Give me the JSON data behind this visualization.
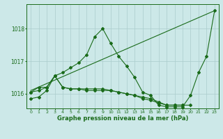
{
  "background_color": "#cce8e8",
  "plot_bg_color": "#cce8e8",
  "grid_color": "#aacccc",
  "line_color": "#1a6b1a",
  "title": "Graphe pression niveau de la mer (hPa)",
  "ylim": [
    1015.55,
    1018.75
  ],
  "yticks": [
    1016,
    1017,
    1018
  ],
  "xticks": [
    0,
    1,
    2,
    3,
    4,
    5,
    6,
    7,
    8,
    9,
    10,
    11,
    12,
    13,
    14,
    15,
    16,
    17,
    18,
    19,
    20,
    21,
    22,
    23
  ],
  "s1": [
    1016.05,
    1016.1,
    1016.2,
    1016.55,
    1016.65,
    1016.8,
    1016.95,
    1017.2,
    1017.75,
    1018.0,
    1017.55,
    1017.15,
    1016.85,
    1016.5,
    1016.05,
    1015.95,
    1015.65,
    1015.6,
    1015.6,
    1015.6,
    1015.95,
    1016.65,
    1017.15,
    1018.55
  ],
  "s3_x": [
    0,
    1,
    2,
    3,
    4,
    5,
    6,
    7,
    8,
    9,
    10,
    11,
    12,
    13,
    14,
    15,
    16,
    17,
    18,
    19,
    20
  ],
  "s3_y": [
    1016.05,
    1016.2,
    1016.2,
    1016.55,
    1016.2,
    1016.15,
    1016.15,
    1016.15,
    1016.15,
    1016.15,
    1016.1,
    1016.05,
    1016.0,
    1015.95,
    1015.85,
    1015.8,
    1015.72,
    1015.65,
    1015.65,
    1015.65,
    1015.65
  ],
  "s4_x": [
    0,
    1,
    2,
    3,
    4,
    5,
    6,
    7,
    8,
    9,
    10,
    11,
    12,
    13,
    14,
    15,
    16,
    17,
    18,
    19
  ],
  "s4_y": [
    1015.85,
    1015.9,
    1016.1,
    1016.55,
    1016.2,
    1016.15,
    1016.15,
    1016.1,
    1016.1,
    1016.1,
    1016.1,
    1016.05,
    1016.0,
    1015.95,
    1015.9,
    1015.85,
    1015.75,
    1015.65,
    1015.65,
    1015.65
  ]
}
